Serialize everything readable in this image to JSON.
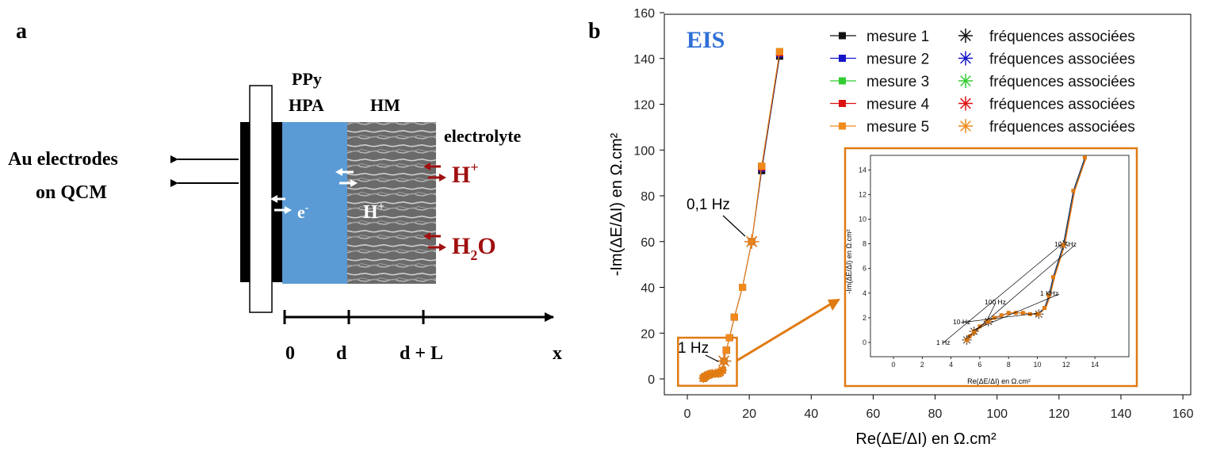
{
  "panel_a": {
    "label": "a",
    "layer_ppy": "PPy",
    "layer_hpa": "HPA",
    "layer_hm": "HM",
    "electrolyte": "electrolyte",
    "electrode_line1": "Au electrodes",
    "electrode_line2": "on QCM",
    "electron": "e",
    "electron_sup": "-",
    "proton": "H",
    "proton_sup": "+",
    "proton_right": "H",
    "proton_right_sup": "+",
    "water_h": "H",
    "water_sub": "2",
    "water_o": "O",
    "axis_ticks": [
      "0",
      "d",
      "d + L",
      "x"
    ],
    "colors": {
      "hpa": "#5b9bd5",
      "ion_arrows": "#a01010",
      "electrode": "#000000"
    }
  },
  "panel_b": {
    "label": "b",
    "eis_label": "EIS",
    "eis_color": "#2f6fd6",
    "highlight_color": "#e07a12",
    "legend": [
      {
        "name": "mesure 1",
        "color": "#111111",
        "star_label": "fréquences associées"
      },
      {
        "name": "mesure 2",
        "color": "#1515c8",
        "star_label": "fréquences associées"
      },
      {
        "name": "mesure 3",
        "color": "#33cc33",
        "star_label": "fréquences associées"
      },
      {
        "name": "mesure 4",
        "color": "#dd1111",
        "star_label": "fréquences associées"
      },
      {
        "name": "mesure 5",
        "color": "#f08a1c",
        "star_label": "fréquences associées"
      }
    ],
    "annotations": {
      "main_01hz": "0,1 Hz",
      "main_1hz": "1 Hz"
    },
    "inset": {
      "annotations": [
        "1 Hz",
        "10 Hz",
        "100 Hz",
        "1 KHz",
        "10 KHz"
      ],
      "xlabel": "Re(ΔE/ΔI) en Ω.cm²",
      "ylabel": "-Im(ΔE/ΔI) en Ω.cm²"
    }
  },
  "chart_data": [
    {
      "type": "scatter",
      "title": "",
      "xlabel": "Re(ΔE/ΔI) en Ω.cm²",
      "ylabel": "-Im(ΔE/ΔI) en Ω.cm²",
      "xlim": [
        -5,
        160
      ],
      "ylim": [
        -5,
        160
      ],
      "xticks": [
        0,
        20,
        40,
        60,
        80,
        100,
        120,
        140,
        160
      ],
      "yticks": [
        0,
        20,
        40,
        60,
        80,
        100,
        120,
        140,
        160
      ],
      "legend_position": "top-right",
      "x": [
        5.2,
        5.6,
        6.0,
        6.6,
        7.2,
        8.0,
        9.0,
        10.0,
        10.6,
        11.3,
        11.8,
        12.6,
        13.6,
        15.2,
        17.8,
        20.8,
        24.0,
        29.8
      ],
      "series": [
        {
          "name": "mesure 1",
          "y": [
            0.3,
            0.8,
            1.2,
            1.6,
            2.0,
            2.3,
            2.4,
            2.4,
            2.9,
            3.8,
            7.8,
            12.5,
            18.0,
            27.0,
            40.0,
            60.0,
            91.0,
            141.0
          ]
        },
        {
          "name": "mesure 2",
          "y": [
            0.3,
            0.8,
            1.2,
            1.6,
            2.0,
            2.3,
            2.4,
            2.4,
            2.9,
            3.8,
            7.8,
            12.5,
            18.0,
            27.0,
            40.0,
            60.0,
            92.0,
            142.0
          ]
        },
        {
          "name": "mesure 3",
          "y": [
            0.3,
            0.8,
            1.2,
            1.6,
            2.0,
            2.3,
            2.4,
            2.4,
            2.9,
            3.8,
            7.8,
            12.5,
            18.0,
            27.0,
            40.0,
            60.0,
            93.0,
            143.0
          ]
        },
        {
          "name": "mesure 4",
          "y": [
            0.3,
            0.8,
            1.2,
            1.6,
            2.0,
            2.3,
            2.4,
            2.4,
            2.9,
            3.8,
            7.8,
            12.5,
            18.0,
            27.0,
            40.0,
            60.0,
            92.5,
            142.5
          ]
        },
        {
          "name": "mesure 5",
          "y": [
            0.3,
            0.8,
            1.2,
            1.6,
            2.0,
            2.3,
            2.4,
            2.4,
            2.9,
            3.8,
            7.8,
            12.5,
            18.0,
            27.0,
            40.0,
            60.0,
            93.0,
            143.0
          ]
        }
      ],
      "frequency_markers": [
        {
          "label": "0,1 Hz",
          "x": 20.8,
          "y": 60.0
        },
        {
          "label": "1 Hz",
          "x": 11.8,
          "y": 7.8
        }
      ]
    },
    {
      "type": "scatter",
      "title": "",
      "xlabel": "Re(ΔE/ΔI) en Ω.cm²",
      "ylabel": "-Im(ΔE/ΔI) en Ω.cm²",
      "xlim": [
        -0.8,
        15.2
      ],
      "ylim": [
        -1.5,
        15
      ],
      "xticks": [
        0,
        2,
        4,
        6,
        8,
        10,
        12,
        14
      ],
      "yticks": [
        0,
        2,
        4,
        6,
        8,
        10,
        12,
        14
      ],
      "x": [
        5.1,
        5.3,
        5.6,
        6.0,
        6.5,
        7.0,
        7.5,
        8.0,
        8.5,
        9.0,
        9.5,
        10.0,
        10.5,
        10.8,
        11.1,
        11.8,
        12.5,
        13.3
      ],
      "y": [
        0.2,
        0.5,
        0.8,
        1.3,
        1.7,
        2.0,
        2.2,
        2.4,
        2.4,
        2.4,
        2.3,
        2.3,
        2.8,
        3.8,
        5.3,
        7.9,
        12.3,
        15.0
      ],
      "frequency_markers": [
        {
          "label": "10 KHz",
          "x": 5.1,
          "y": 0.2
        },
        {
          "label": "1 KHz",
          "x": 5.6,
          "y": 0.9
        },
        {
          "label": "100 Hz",
          "x": 6.6,
          "y": 1.7
        },
        {
          "label": "10 Hz",
          "x": 10.1,
          "y": 2.3
        },
        {
          "label": "1 Hz",
          "x": 11.8,
          "y": 7.9
        }
      ]
    }
  ]
}
